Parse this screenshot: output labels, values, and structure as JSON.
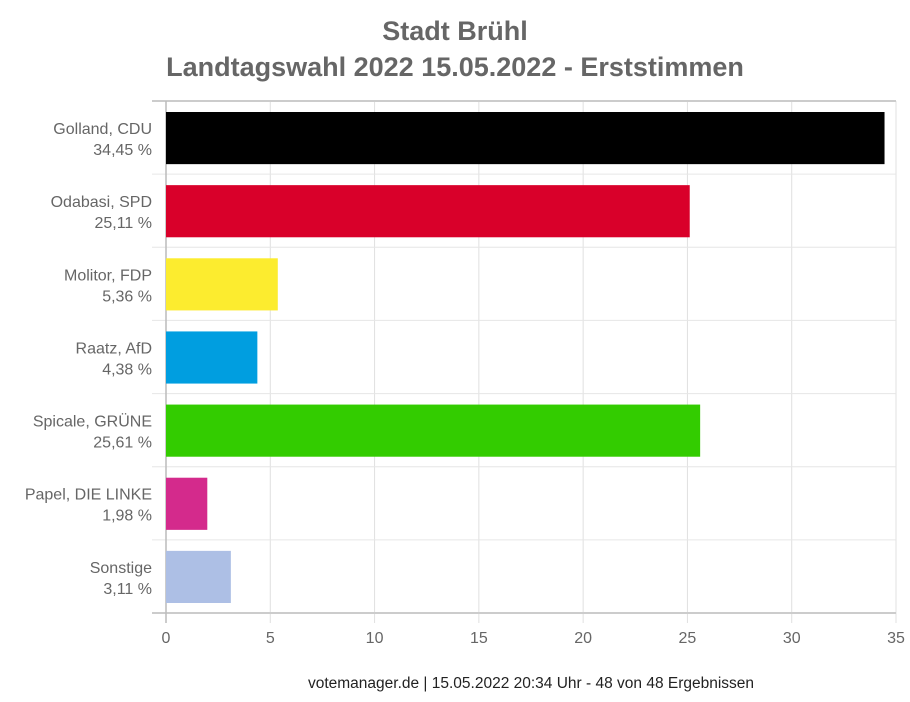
{
  "chart_data": {
    "type": "bar",
    "orientation": "horizontal",
    "title": "Stadt Brühl",
    "subtitle": "Landtagswahl 2022 15.05.2022  - Erststimmen",
    "categories": [
      "Golland, CDU",
      "Odabasi, SPD",
      "Molitor, FDP",
      "Raatz, AfD",
      "Spicale, GRÜNE",
      "Papel, DIE LINKE",
      "Sonstige"
    ],
    "value_labels": [
      "34,45 %",
      "25,11 %",
      "5,36 %",
      "4,38 %",
      "25,61 %",
      "1,98 %",
      "3,11 %"
    ],
    "values": [
      34.45,
      25.11,
      5.36,
      4.38,
      25.61,
      1.98,
      3.11
    ],
    "colors": [
      "#000000",
      "#d9002a",
      "#fcec2f",
      "#009ee0",
      "#33cc00",
      "#d42a8c",
      "#adbfe5"
    ],
    "xlim": [
      0,
      35
    ],
    "xticks": [
      "0",
      "5",
      "10",
      "15",
      "20",
      "25",
      "30",
      "35"
    ],
    "xtick_values": [
      0,
      5,
      10,
      15,
      20,
      25,
      30,
      35
    ],
    "grid": true,
    "xlabel": "",
    "ylabel": ""
  },
  "footer": "votemanager.de | 15.05.2022 20:34 Uhr - 48 von 48 Ergebnissen"
}
